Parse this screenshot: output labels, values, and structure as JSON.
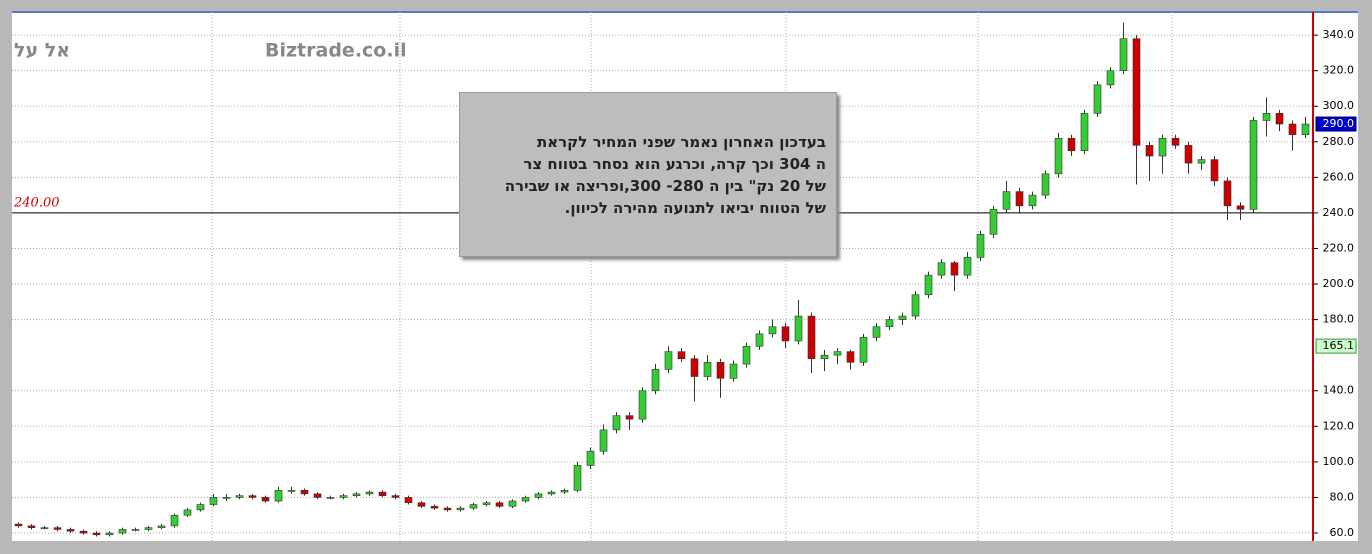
{
  "chart_data": {
    "type": "candlestick",
    "title": "אל על",
    "watermark": "Biztrade.co.il",
    "ylim": [
      55.5,
      353
    ],
    "yticks": [
      {
        "value": 60,
        "label": "60.0"
      },
      {
        "value": 80,
        "label": "80.0"
      },
      {
        "value": 100,
        "label": "100.0"
      },
      {
        "value": 120,
        "label": "120.0"
      },
      {
        "value": 140,
        "label": "140.0"
      },
      {
        "value": 180,
        "label": "180.0"
      },
      {
        "value": 200,
        "label": "200.0"
      },
      {
        "value": 220,
        "label": "220.0"
      },
      {
        "value": 240,
        "label": "240.0"
      },
      {
        "value": 260,
        "label": "260.0"
      },
      {
        "value": 280,
        "label": "280.0"
      },
      {
        "value": 300,
        "label": "300.0"
      },
      {
        "value": 320,
        "label": "320.0"
      },
      {
        "value": 340,
        "label": "340.0"
      }
    ],
    "grid": true,
    "up_color": "#33cc33",
    "down_color": "#cc0000",
    "open": [
      65,
      64,
      63,
      63,
      62,
      61,
      60,
      59,
      60,
      62,
      62,
      63,
      64,
      70,
      73,
      76,
      80,
      80,
      81,
      80,
      78,
      84,
      84,
      82,
      80,
      80,
      81,
      82,
      83,
      81,
      80,
      77,
      75,
      74,
      73,
      74,
      76,
      77,
      75,
      78,
      80,
      82,
      83,
      84,
      98,
      106,
      118,
      126,
      124,
      140,
      152,
      162,
      158,
      148,
      156,
      147,
      155,
      165,
      172,
      176,
      168,
      182,
      158,
      160,
      162,
      156,
      170,
      176,
      180,
      182,
      194,
      205,
      212,
      205,
      215,
      228,
      242,
      252,
      244,
      250,
      262,
      282,
      275,
      296,
      312,
      320,
      338,
      278,
      272,
      282,
      278,
      268,
      270,
      258,
      244,
      242,
      292,
      296,
      290,
      284
    ],
    "high": [
      66,
      65,
      64,
      64,
      63,
      62,
      61,
      61,
      63,
      63,
      64,
      65,
      71,
      74,
      77,
      82,
      82,
      82,
      82,
      81,
      86,
      86,
      85,
      83,
      81,
      82,
      83,
      84,
      84,
      82,
      81,
      78,
      76,
      75,
      75,
      77,
      78,
      78,
      79,
      81,
      83,
      84,
      85,
      100,
      108,
      121,
      128,
      128,
      142,
      155,
      165,
      164,
      160,
      160,
      158,
      157,
      167,
      174,
      180,
      178,
      191,
      184,
      163,
      164,
      163,
      172,
      178,
      182,
      184,
      196,
      207,
      214,
      213,
      218,
      230,
      244,
      258,
      254,
      252,
      264,
      285,
      284,
      298,
      314,
      322,
      347,
      340,
      280,
      284,
      284,
      280,
      272,
      272,
      260,
      246,
      294,
      305,
      298,
      292,
      294
    ],
    "low": [
      63,
      62,
      62,
      61,
      60,
      59,
      58,
      58,
      59,
      61,
      61,
      62,
      63,
      69,
      72,
      75,
      78,
      79,
      79,
      77,
      77,
      82,
      81,
      79,
      79,
      79,
      80,
      81,
      80,
      79,
      76,
      74,
      73,
      72,
      72,
      73,
      75,
      74,
      74,
      77,
      79,
      81,
      82,
      83,
      96,
      104,
      116,
      118,
      122,
      138,
      150,
      156,
      134,
      146,
      136,
      145,
      153,
      163,
      170,
      164,
      166,
      150,
      151,
      155,
      152,
      154,
      168,
      174,
      177,
      180,
      192,
      203,
      196,
      203,
      213,
      226,
      240,
      240,
      242,
      248,
      260,
      272,
      273,
      294,
      310,
      318,
      256,
      258,
      262,
      276,
      262,
      264,
      255,
      236,
      236,
      240,
      283,
      286,
      275,
      282
    ],
    "close": [
      64,
      63,
      63,
      62,
      61,
      60,
      59,
      60,
      62,
      62,
      63,
      64,
      70,
      73,
      76,
      80,
      80,
      81,
      80,
      78,
      84,
      84,
      82,
      80,
      80,
      81,
      82,
      83,
      81,
      80,
      77,
      75,
      74,
      73,
      74,
      76,
      77,
      75,
      78,
      80,
      82,
      83,
      84,
      98,
      106,
      118,
      126,
      124,
      140,
      152,
      162,
      158,
      148,
      156,
      147,
      155,
      165,
      172,
      176,
      168,
      182,
      158,
      160,
      162,
      156,
      170,
      176,
      180,
      182,
      194,
      205,
      212,
      205,
      215,
      228,
      242,
      252,
      244,
      250,
      262,
      282,
      275,
      296,
      312,
      320,
      338,
      278,
      272,
      282,
      278,
      268,
      270,
      258,
      244,
      242,
      292,
      296,
      290,
      284,
      290
    ],
    "hline": {
      "value": 240,
      "label": "240.00",
      "color": "#cc0000"
    },
    "price_tags": [
      {
        "value": 290,
        "label": "290.0",
        "color": "#0000cc"
      },
      {
        "value": 165.1,
        "label": "165.1",
        "color": "#ccffcc"
      }
    ],
    "annotation": [
      "בעדכון  האחרון  נאמר  שפני  המחיר   לקראת",
      "ה  304  וכך קרה, וכרגע  הוא נסחר   בטווח  צר",
      "של  20  נק\"  בין  ה  280-  300,ופריצה  או  שבירה",
      "של  הטווח  יביאו  לתנועה  מהירה  לכיוון."
    ]
  }
}
